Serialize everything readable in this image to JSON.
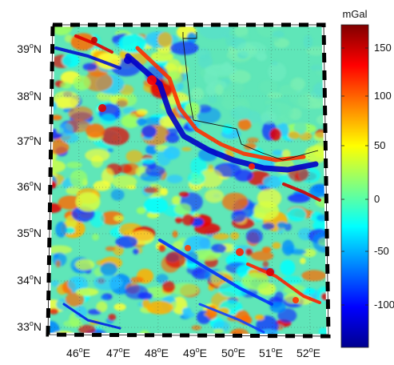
{
  "map": {
    "lat_labels": [
      {
        "deg": "39",
        "hemi": "N"
      },
      {
        "deg": "38",
        "hemi": "N"
      },
      {
        "deg": "37",
        "hemi": "N"
      },
      {
        "deg": "36",
        "hemi": "N"
      },
      {
        "deg": "35",
        "hemi": "N"
      },
      {
        "deg": "34",
        "hemi": "N"
      },
      {
        "deg": "33",
        "hemi": "N"
      }
    ],
    "lon_labels": [
      {
        "deg": "46",
        "hemi": "E"
      },
      {
        "deg": "47",
        "hemi": "E"
      },
      {
        "deg": "48",
        "hemi": "E"
      },
      {
        "deg": "49",
        "hemi": "E"
      },
      {
        "deg": "50",
        "hemi": "E"
      },
      {
        "deg": "51",
        "hemi": "E"
      },
      {
        "deg": "52",
        "hemi": "E"
      }
    ],
    "degree_symbol": "o",
    "lat_range": [
      32.6,
      39.5
    ],
    "lon_range": [
      45.2,
      52.3
    ],
    "grid": "dotted",
    "frame": "dashed black-white"
  },
  "colorbar": {
    "unit": "mGal",
    "ticks": [
      "150",
      "100",
      "50",
      "0",
      "-50",
      "-100"
    ],
    "range": [
      -170,
      165
    ],
    "colormap": "jet",
    "colors": [
      "#00008f",
      "#0000ff",
      "#0080ff",
      "#00ffff",
      "#80ff80",
      "#ffff00",
      "#ff8000",
      "#ff0000",
      "#800000"
    ]
  }
}
